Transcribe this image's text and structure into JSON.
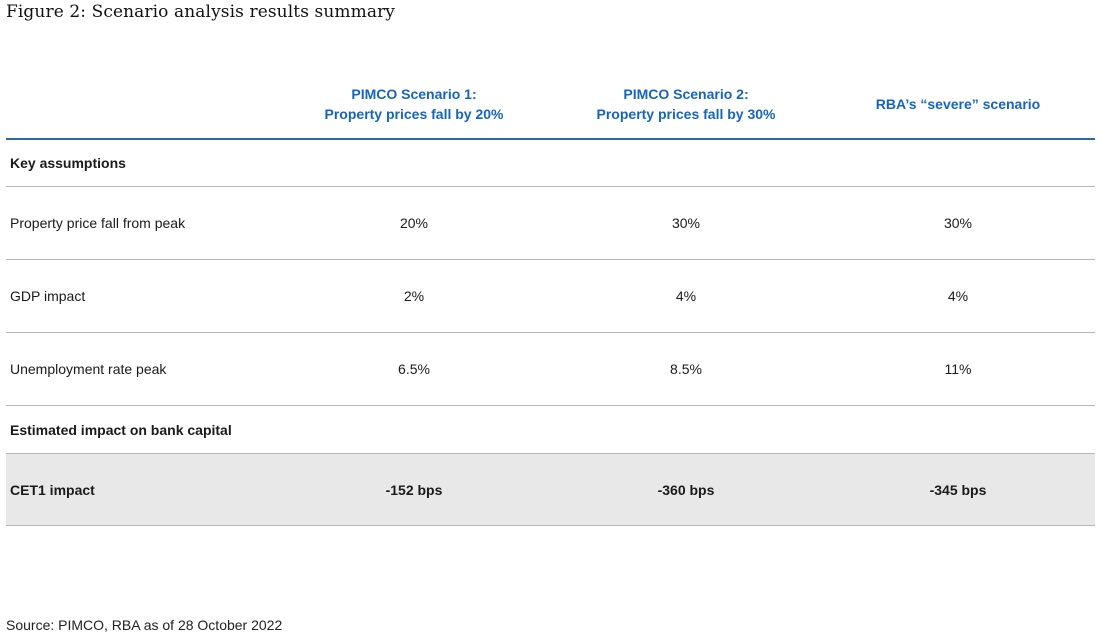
{
  "title": "Figure 2: Scenario analysis results summary",
  "table": {
    "columns": [
      {
        "line1": "PIMCO Scenario 1:",
        "line2": "Property prices fall by 20%"
      },
      {
        "line1": "PIMCO Scenario 2:",
        "line2": "Property prices fall by 30%"
      },
      {
        "line1": "",
        "line2": "RBA’s “severe” scenario"
      }
    ],
    "section_key_assumptions": "Key assumptions",
    "rows": [
      {
        "label": "Property price fall from peak",
        "values": [
          "20%",
          "30%",
          "30%"
        ]
      },
      {
        "label": "GDP impact",
        "values": [
          "2%",
          "4%",
          "4%"
        ]
      },
      {
        "label": "Unemployment rate peak",
        "values": [
          "6.5%",
          "8.5%",
          "11%"
        ]
      }
    ],
    "section_bank_capital": "Estimated impact on bank capital",
    "cet1_row": {
      "label": "CET1 impact",
      "values": [
        "-152 bps",
        "-360 bps",
        "-345 bps"
      ]
    }
  },
  "source": "Source: PIMCO, RBA as of 28 October 2022",
  "colors": {
    "header_text": "#1565c0",
    "header_rule": "#2a6ba3",
    "row_rule": "#b8b8b8",
    "shade": "#e8e8e8"
  }
}
